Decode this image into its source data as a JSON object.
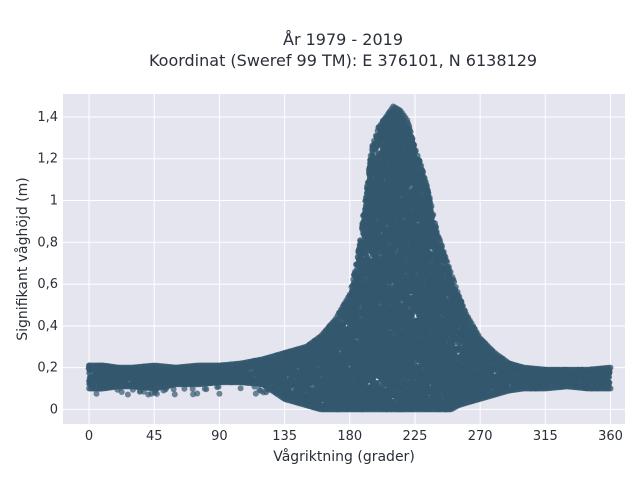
{
  "chart_data": {
    "type": "scatter",
    "title_line1": "År 1979 - 2019",
    "title_line2": "Koordinat (Sweref 99 TM): E 376101, N 6138129",
    "xlabel": "Vågriktning (grader)",
    "ylabel": "Signifikant våghöjd (m)",
    "xlim": [
      -18,
      370
    ],
    "ylim": [
      -0.07,
      1.51
    ],
    "xticks": [
      0,
      45,
      90,
      135,
      180,
      225,
      270,
      315,
      360
    ],
    "xtick_labels": [
      "0",
      "45",
      "90",
      "135",
      "180",
      "225",
      "270",
      "315",
      "360"
    ],
    "yticks": [
      0,
      0.2,
      0.4,
      0.6,
      0.8,
      1.0,
      1.2,
      1.4
    ],
    "ytick_labels": [
      "0",
      "0,2",
      "0,4",
      "0,6",
      "0,8",
      "1",
      "1,2",
      "1,4"
    ],
    "grid": true,
    "marker_color": "#34586e",
    "background_color": "#e5e5f0",
    "envelope": {
      "x": [
        0,
        10,
        20,
        30,
        45,
        60,
        75,
        90,
        105,
        120,
        135,
        150,
        160,
        170,
        180,
        185,
        190,
        195,
        200,
        205,
        210,
        215,
        220,
        225,
        230,
        235,
        240,
        245,
        250,
        255,
        260,
        270,
        280,
        290,
        300,
        315,
        330,
        345,
        360
      ],
      "ymax": [
        0.21,
        0.21,
        0.2,
        0.2,
        0.21,
        0.2,
        0.21,
        0.21,
        0.22,
        0.24,
        0.27,
        0.3,
        0.35,
        0.43,
        0.55,
        0.7,
        0.95,
        1.25,
        1.35,
        1.4,
        1.45,
        1.43,
        1.38,
        1.25,
        1.15,
        1.02,
        0.85,
        0.75,
        0.65,
        0.55,
        0.46,
        0.34,
        0.27,
        0.22,
        0.2,
        0.19,
        0.19,
        0.19,
        0.2
      ],
      "ymin": [
        0.1,
        0.1,
        0.11,
        0.11,
        0.1,
        0.12,
        0.12,
        0.13,
        0.13,
        0.12,
        0.05,
        0.02,
        0.0,
        0.0,
        0.0,
        0.0,
        0.0,
        0.0,
        0.0,
        0.0,
        0.0,
        0.0,
        0.0,
        0.0,
        0.0,
        0.0,
        0.0,
        0.0,
        0.0,
        0.02,
        0.03,
        0.05,
        0.07,
        0.09,
        0.1,
        0.1,
        0.11,
        0.1,
        0.1
      ]
    }
  }
}
